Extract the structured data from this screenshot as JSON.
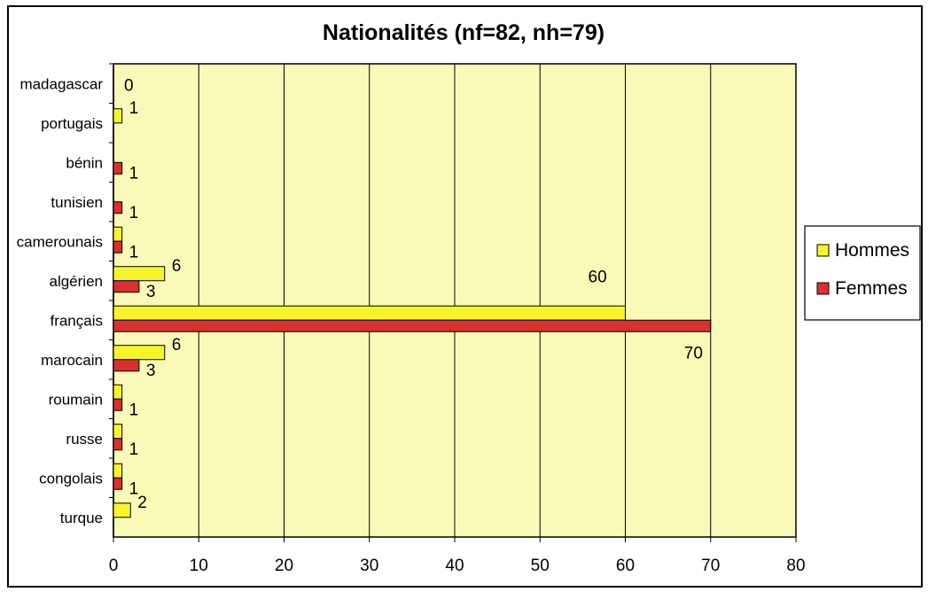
{
  "chart_data": {
    "type": "bar",
    "orientation": "horizontal",
    "title": "Nationalités (nf=82, nh=79)",
    "xlabel": "",
    "ylabel": "",
    "xlim": [
      0,
      80
    ],
    "xticks": [
      0,
      10,
      20,
      30,
      40,
      50,
      60,
      70,
      80
    ],
    "grid": "vertical",
    "legend_position": "right",
    "categories": [
      "madagascar",
      "portugais",
      "bénin",
      "tunisien",
      "camerounais",
      "algérien",
      "français",
      "marocain",
      "roumain",
      "russe",
      "congolais",
      "turque"
    ],
    "series": [
      {
        "name": "Hommes",
        "color": "#f5f52a",
        "values": [
          null,
          1,
          null,
          null,
          1,
          6,
          60,
          6,
          1,
          1,
          1,
          2
        ],
        "labels": [
          "",
          "1",
          "",
          "",
          "",
          "6",
          "60",
          "6",
          "",
          "",
          "",
          "2"
        ]
      },
      {
        "name": "Femmes",
        "color": "#d93030",
        "values": [
          null,
          null,
          1,
          1,
          1,
          3,
          70,
          3,
          1,
          1,
          1,
          null
        ],
        "labels": [
          "",
          "",
          "1",
          "1",
          "1",
          "3",
          "70",
          "3",
          "1",
          "1",
          "1",
          ""
        ]
      }
    ],
    "extra_labels": [
      {
        "category": "madagascar",
        "text": "0"
      }
    ],
    "plot_background": "#fafab8",
    "label_color": "#000000"
  }
}
